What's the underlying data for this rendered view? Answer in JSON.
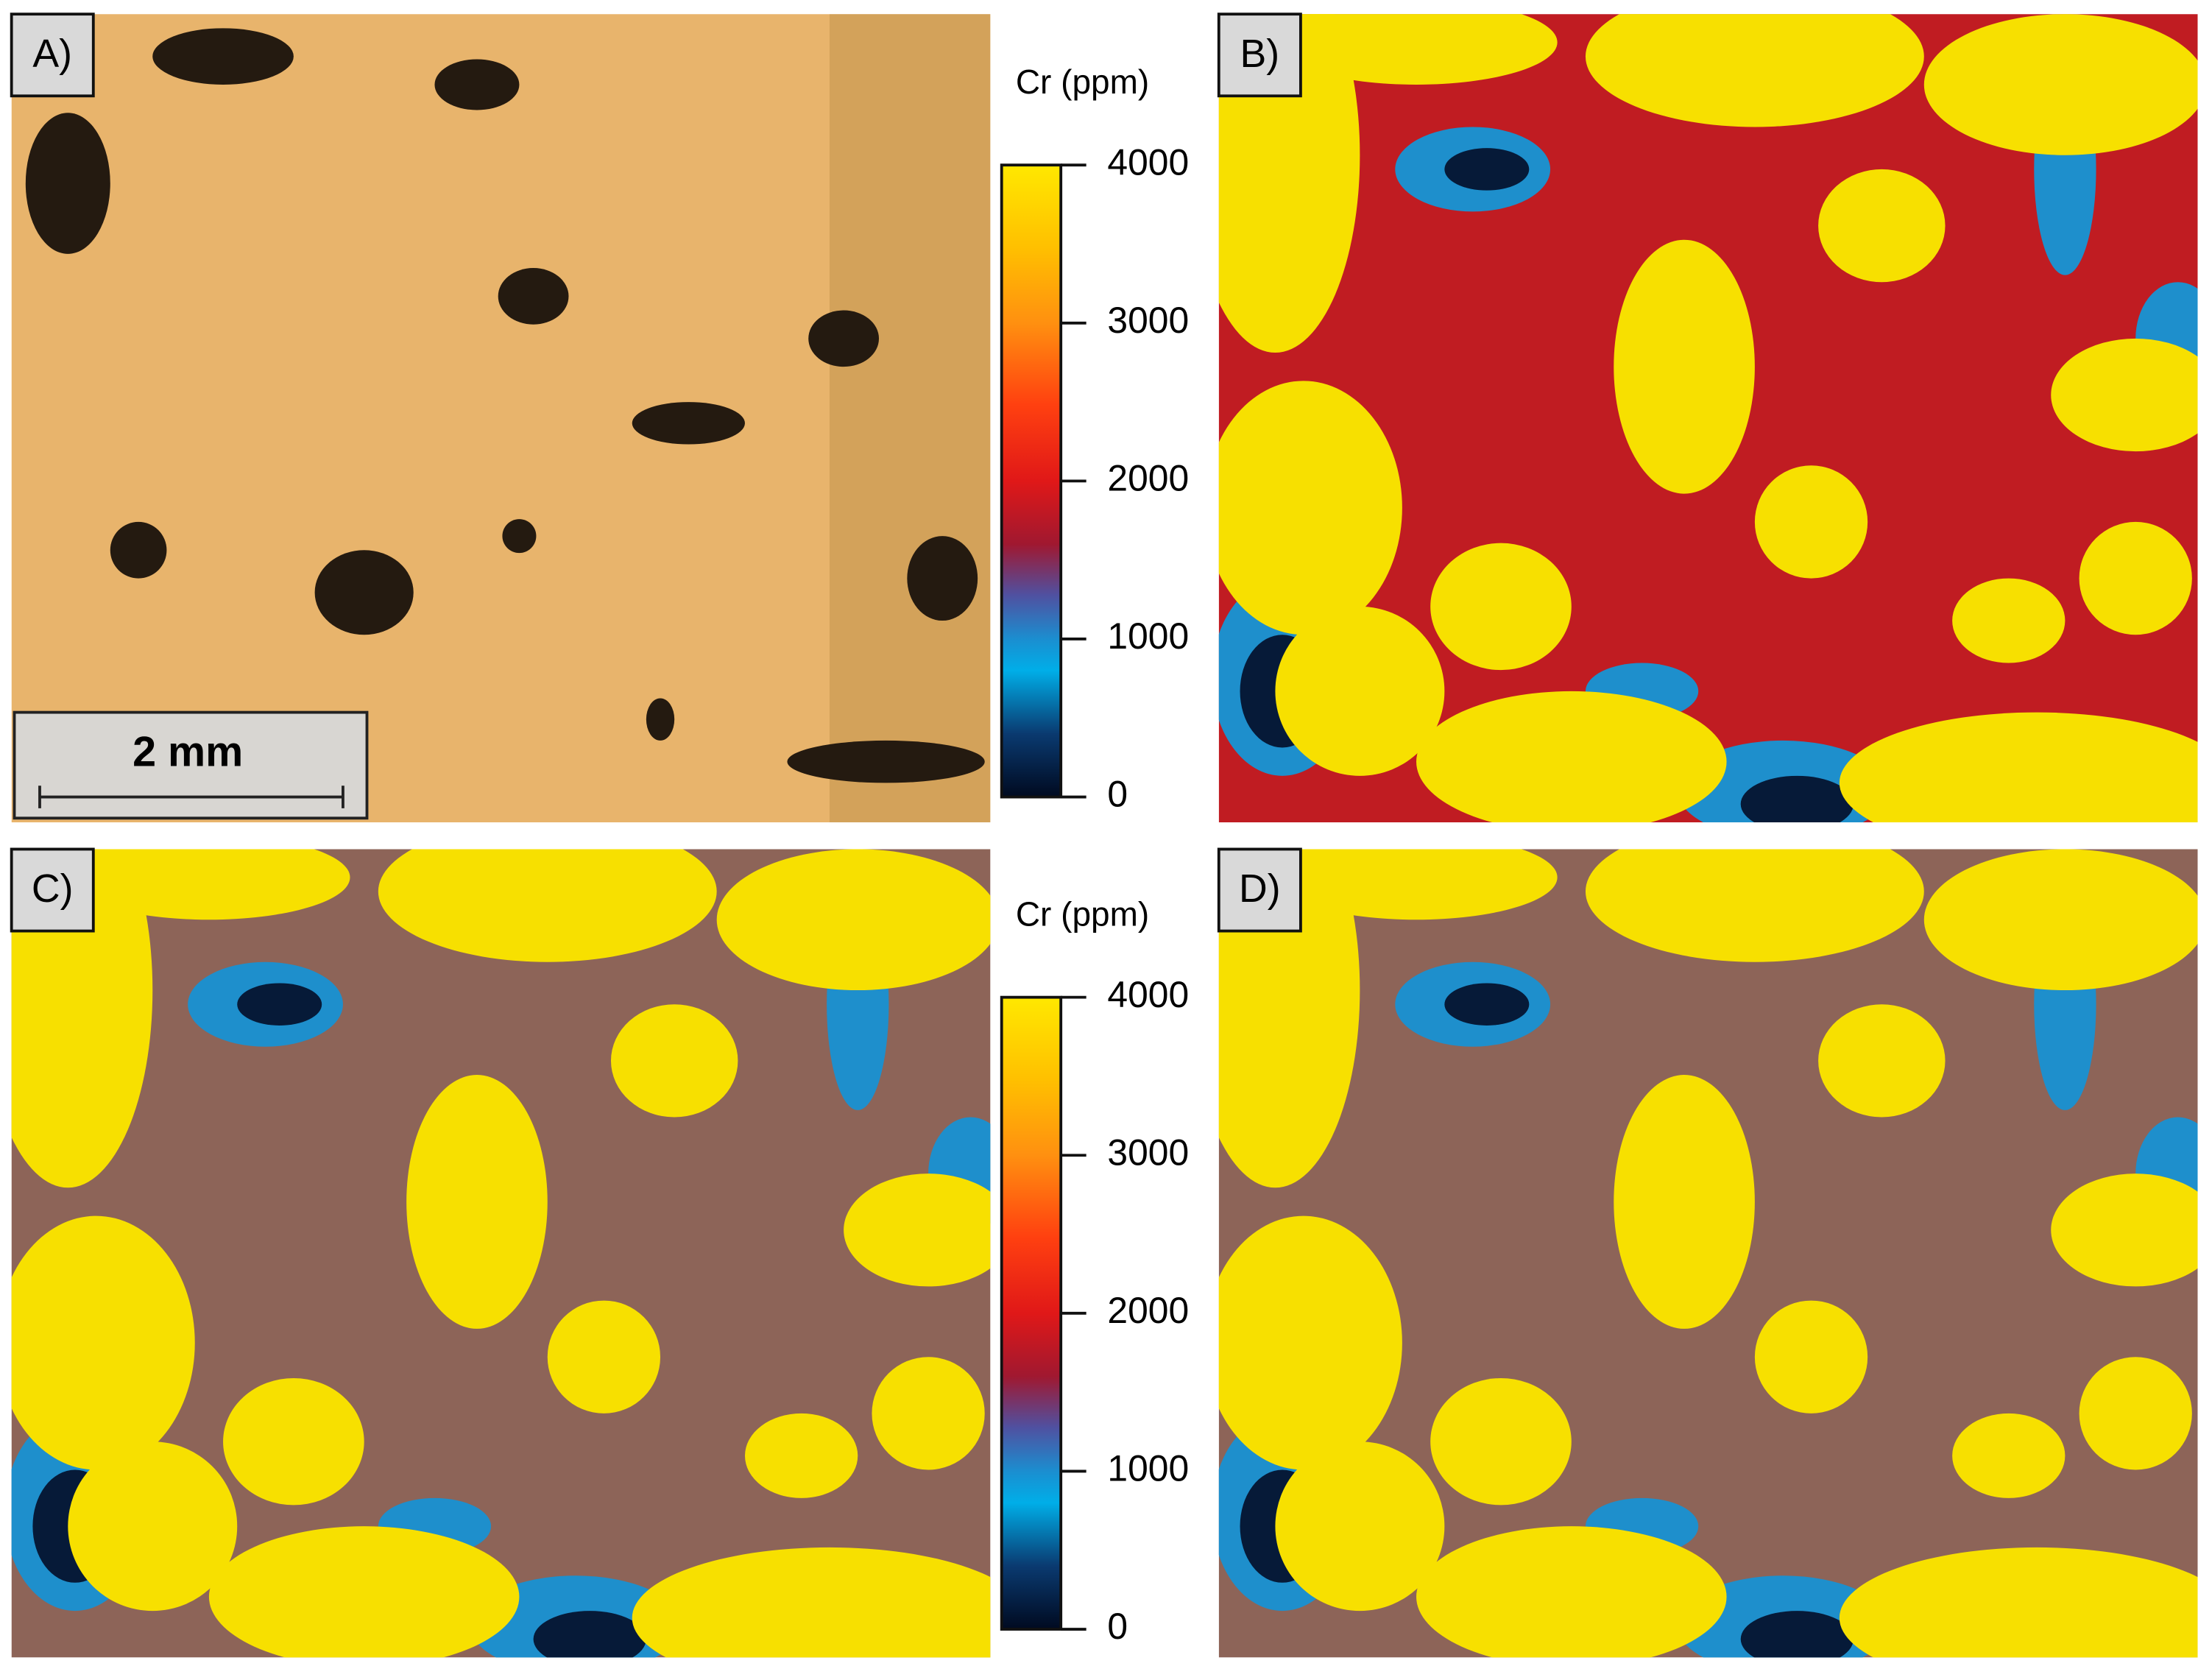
{
  "panels": [
    {
      "label": "A)"
    },
    {
      "label": "B)"
    },
    {
      "label": "C)"
    },
    {
      "label": "D)"
    }
  ],
  "scale_bar": {
    "label": "2 mm"
  },
  "colorbars": [
    {
      "label": "Cr (ppm)",
      "lim": [
        0,
        4000
      ],
      "ticks": [
        0,
        1000,
        2000,
        3000,
        4000
      ]
    },
    {
      "label": "Cr (ppm)",
      "lim": [
        0,
        4000
      ],
      "ticks": [
        0,
        1000,
        2000,
        3000,
        4000
      ]
    }
  ]
}
